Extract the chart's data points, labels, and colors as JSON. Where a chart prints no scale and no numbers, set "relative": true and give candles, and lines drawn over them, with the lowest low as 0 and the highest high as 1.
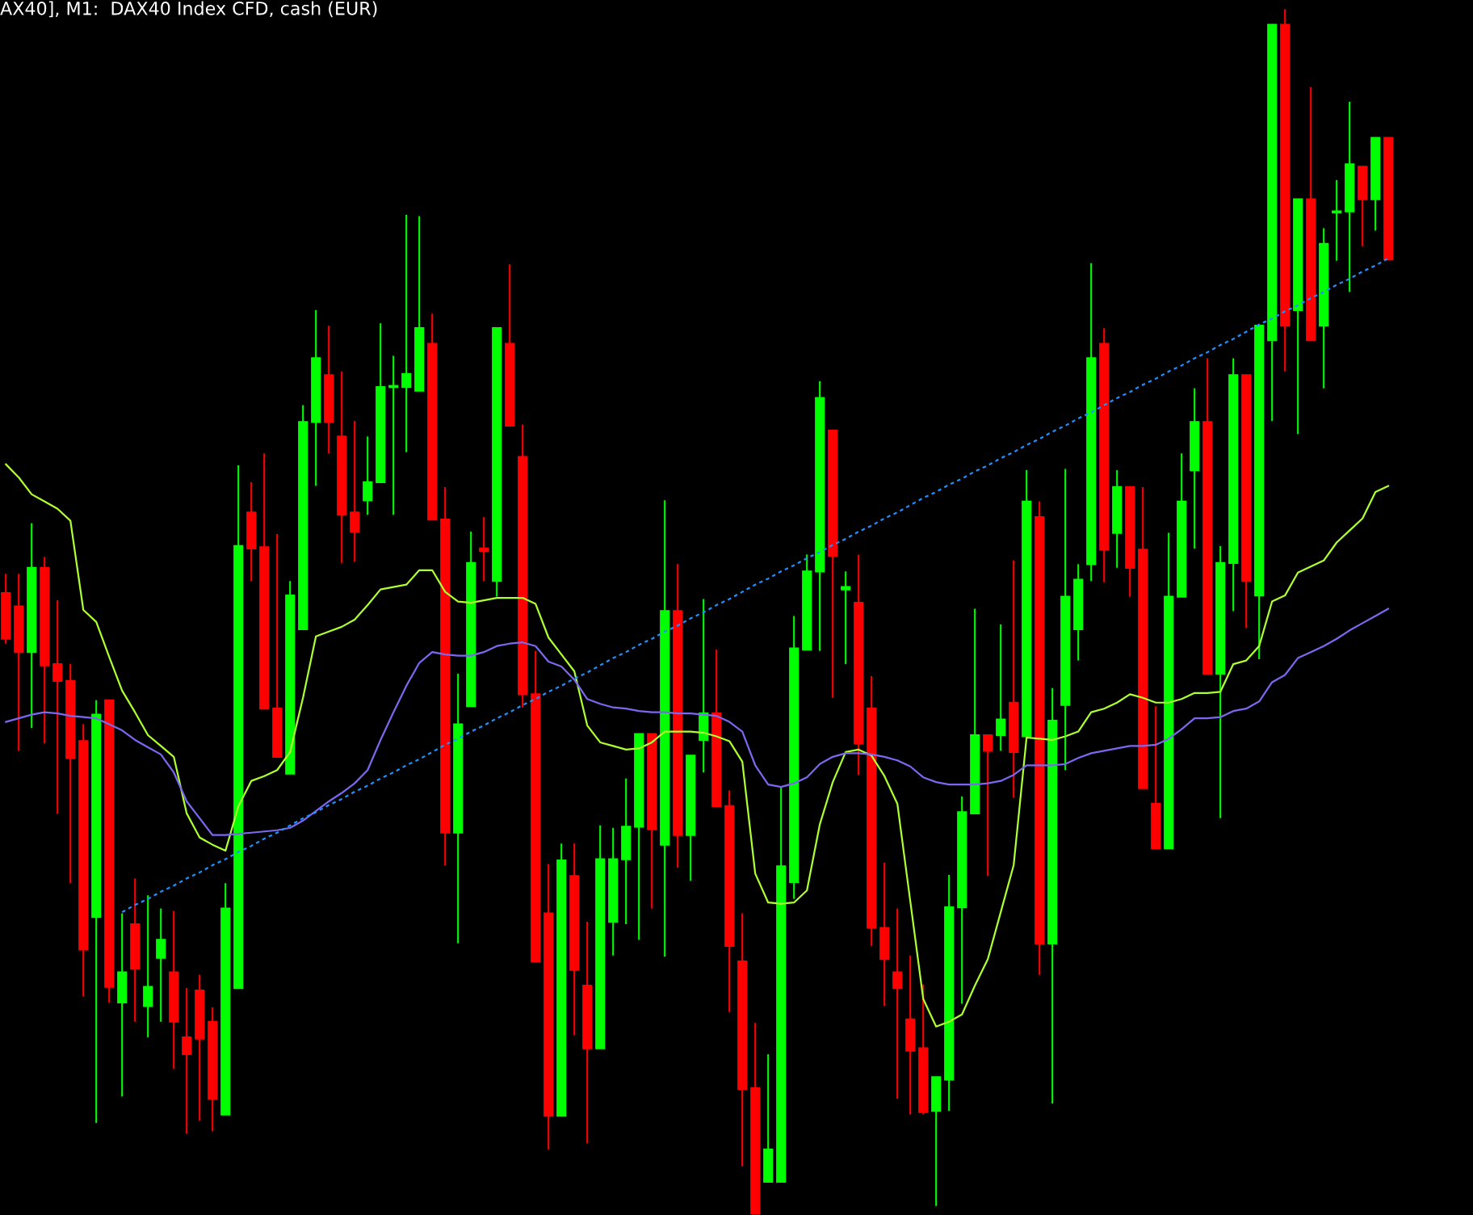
{
  "chart_data": {
    "type": "candlestick",
    "title": "AX40], M1:  DAX40 Index CFD, cash (EUR)",
    "relative": true,
    "categories": [
      null,
      null,
      null,
      null,
      null,
      null,
      null,
      null,
      null,
      null,
      null,
      null,
      null,
      null,
      null,
      null,
      null,
      null,
      null,
      null,
      null,
      null,
      null,
      null,
      null,
      null,
      null,
      null,
      null,
      null,
      null,
      null,
      null,
      null,
      null,
      null,
      null,
      null,
      null,
      null,
      null,
      null,
      null,
      null,
      null,
      null,
      null,
      null,
      null,
      null,
      null,
      null,
      null,
      null,
      null,
      null,
      null,
      null,
      null,
      null,
      null,
      null,
      null,
      null,
      null,
      null,
      null,
      null,
      null,
      null,
      null,
      null,
      null,
      null,
      null,
      null,
      null,
      null,
      null,
      null,
      null,
      null,
      null,
      null,
      null,
      null,
      null,
      null,
      null,
      null,
      null,
      null,
      null,
      null,
      null,
      null,
      null,
      null,
      null,
      null,
      null,
      null,
      null,
      null,
      null,
      null,
      null,
      null
    ],
    "ohlc": [
      [
        0.515,
        0.531,
        0.473,
        0.477
      ],
      [
        0.504,
        0.531,
        0.384,
        0.466
      ],
      [
        0.466,
        0.573,
        0.403,
        0.536
      ],
      [
        0.536,
        0.545,
        0.39,
        0.455
      ],
      [
        0.456,
        0.509,
        0.332,
        0.442
      ],
      [
        0.442,
        0.456,
        0.274,
        0.378
      ],
      [
        0.392,
        0.406,
        0.18,
        0.219
      ],
      [
        0.246,
        0.426,
        0.075,
        0.414
      ],
      [
        0.426,
        0.426,
        0.175,
        0.188
      ],
      [
        0.175,
        0.249,
        0.097,
        0.2
      ],
      [
        0.24,
        0.278,
        0.159,
        0.203
      ],
      [
        0.172,
        0.264,
        0.146,
        0.188
      ],
      [
        0.212,
        0.253,
        0.159,
        0.227
      ],
      [
        0.2,
        0.251,
        0.12,
        0.159
      ],
      [
        0.146,
        0.187,
        0.066,
        0.132
      ],
      [
        0.185,
        0.198,
        0.077,
        0.145
      ],
      [
        0.159,
        0.171,
        0.068,
        0.095
      ],
      [
        0.082,
        0.274,
        0.082,
        0.253
      ],
      [
        0.187,
        0.621,
        0.187,
        0.554
      ],
      [
        0.582,
        0.607,
        0.525,
        0.552
      ],
      [
        0.553,
        0.631,
        0.419,
        0.419
      ],
      [
        0.419,
        0.564,
        0.379,
        0.379
      ],
      [
        0.365,
        0.525,
        0.365,
        0.513
      ],
      [
        0.485,
        0.671,
        0.485,
        0.657
      ],
      [
        0.657,
        0.75,
        0.604,
        0.71
      ],
      [
        0.696,
        0.737,
        0.631,
        0.657
      ],
      [
        0.645,
        0.699,
        0.54,
        0.58
      ],
      [
        0.582,
        0.658,
        0.541,
        0.566
      ],
      [
        0.592,
        0.645,
        0.58,
        0.607
      ],
      [
        0.607,
        0.739,
        0.607,
        0.686
      ],
      [
        0.686,
        0.712,
        0.58,
        0.687
      ],
      [
        0.686,
        0.829,
        0.632,
        0.697
      ],
      [
        0.683,
        0.828,
        0.683,
        0.735
      ],
      [
        0.722,
        0.747,
        0.576,
        0.576
      ],
      [
        0.576,
        0.603,
        0.289,
        0.316
      ],
      [
        0.316,
        0.448,
        0.224,
        0.406
      ],
      [
        0.421,
        0.566,
        0.421,
        0.54
      ],
      [
        0.552,
        0.578,
        0.525,
        0.55
      ],
      [
        0.525,
        0.735,
        0.512,
        0.735
      ],
      [
        0.722,
        0.788,
        0.654,
        0.654
      ],
      [
        0.628,
        0.655,
        0.42,
        0.431
      ],
      [
        0.431,
        0.467,
        0.209,
        0.209
      ],
      [
        0.249,
        0.29,
        0.053,
        0.081
      ],
      [
        0.081,
        0.307,
        0.081,
        0.293
      ],
      [
        0.28,
        0.307,
        0.148,
        0.202
      ],
      [
        0.189,
        0.242,
        0.058,
        0.137
      ],
      [
        0.137,
        0.322,
        0.137,
        0.294
      ],
      [
        0.242,
        0.32,
        0.214,
        0.294
      ],
      [
        0.294,
        0.361,
        0.24,
        0.321
      ],
      [
        0.321,
        0.398,
        0.227,
        0.398
      ],
      [
        0.398,
        0.398,
        0.253,
        0.319
      ],
      [
        0.306,
        0.592,
        0.213,
        0.5
      ],
      [
        0.5,
        0.539,
        0.287,
        0.314
      ],
      [
        0.314,
        0.38,
        0.276,
        0.38
      ],
      [
        0.393,
        0.51,
        0.366,
        0.415
      ],
      [
        0.415,
        0.468,
        0.338,
        0.338
      ],
      [
        0.338,
        0.351,
        0.167,
        0.222
      ],
      [
        0.209,
        0.249,
        0.039,
        0.103
      ],
      [
        0.104,
        0.158,
        0,
        0
      ],
      [
        0.026,
        0.132,
        0.026,
        0.053
      ],
      [
        0.026,
        0.354,
        0.026,
        0.288
      ],
      [
        0.275,
        0.496,
        0.261,
        0.469
      ],
      [
        0.468,
        0.547,
        0.468,
        0.533
      ],
      [
        0.533,
        0.691,
        0.467,
        0.677
      ],
      [
        0.65,
        0.65,
        0.428,
        0.546
      ],
      [
        0.518,
        0.533,
        0.456,
        0.52
      ],
      [
        0.507,
        0.547,
        0.364,
        0.39
      ],
      [
        0.419,
        0.446,
        0.222,
        0.237
      ],
      [
        0.237,
        0.291,
        0.172,
        0.211
      ],
      [
        0.2,
        0.253,
        0.095,
        0.187
      ],
      [
        0.161,
        0.214,
        0.082,
        0.135
      ],
      [
        0.137,
        0.19,
        0.082,
        0.084
      ],
      [
        0.085,
        0.113,
        0.006,
        0.113
      ],
      [
        0.111,
        0.281,
        0.085,
        0.254
      ],
      [
        0.254,
        0.346,
        0.174,
        0.333
      ],
      [
        0.332,
        0.502,
        0.332,
        0.397
      ],
      [
        0.397,
        0.397,
        0.28,
        0.384
      ],
      [
        0.397,
        0.489,
        0.384,
        0.41
      ],
      [
        0.424,
        0.542,
        0.345,
        0.383
      ],
      [
        0.396,
        0.617,
        0.396,
        0.591
      ],
      [
        0.578,
        0.591,
        0.198,
        0.224
      ],
      [
        0.224,
        0.436,
        0.091,
        0.409
      ],
      [
        0.422,
        0.618,
        0.368,
        0.512
      ],
      [
        0.485,
        0.539,
        0.459,
        0.526
      ],
      [
        0.539,
        0.789,
        0.525,
        0.71
      ],
      [
        0.722,
        0.735,
        0.524,
        0.551
      ],
      [
        0.565,
        0.617,
        0.536,
        0.603
      ],
      [
        0.603,
        0.603,
        0.512,
        0.536
      ],
      [
        0.551,
        0.603,
        0.353,
        0.353
      ],
      [
        0.34,
        0.421,
        0.303,
        0.303
      ],
      [
        0.303,
        0.565,
        0.303,
        0.512
      ],
      [
        0.512,
        0.631,
        0.512,
        0.591
      ],
      [
        0.617,
        0.685,
        0.552,
        0.657
      ],
      [
        0.657,
        0.71,
        0.448,
        0.448
      ],
      [
        0.448,
        0.554,
        0.328,
        0.54
      ],
      [
        0.54,
        0.71,
        0.5,
        0.696
      ],
      [
        0.696,
        0.696,
        0.486,
        0.525
      ],
      [
        0.513,
        0.737,
        0.46,
        0.737
      ],
      [
        0.725,
        0.987,
        0.658,
        0.987
      ],
      [
        0.987,
        1,
        0.699,
        0.737
      ],
      [
        0.75,
        0.842,
        0.647,
        0.842
      ],
      [
        0.842,
        0.935,
        0.725,
        0.725
      ],
      [
        0.737,
        0.818,
        0.685,
        0.805
      ],
      [
        0.831,
        0.858,
        0.791,
        0.832
      ],
      [
        0.832,
        0.923,
        0.765,
        0.871
      ],
      [
        0.869,
        0.869,
        0.803,
        0.842
      ],
      [
        0.842,
        0.893,
        0.816,
        0.893
      ],
      [
        0.893,
        0.893,
        0.792,
        0.792
      ]
    ],
    "colors": [
      "#ff0000",
      "#ff0000",
      "#00ff00",
      "#ff0000",
      "#ff0000",
      "#ff0000",
      "#ff0000",
      "#00ff00",
      "#ff0000",
      "#00ff00",
      "#ff0000",
      "#00ff00",
      "#00ff00",
      "#ff0000",
      "#ff0000",
      "#ff0000",
      "#ff0000",
      "#00ff00",
      "#00ff00",
      "#ff0000",
      "#ff0000",
      "#ff0000",
      "#00ff00",
      "#00ff00",
      "#00ff00",
      "#ff0000",
      "#ff0000",
      "#ff0000",
      "#00ff00",
      "#00ff00",
      "#00ff00",
      "#00ff00",
      "#00ff00",
      "#ff0000",
      "#ff0000",
      "#00ff00",
      "#00ff00",
      "#ff0000",
      "#00ff00",
      "#ff0000",
      "#ff0000",
      "#ff0000",
      "#ff0000",
      "#00ff00",
      "#ff0000",
      "#ff0000",
      "#00ff00",
      "#00ff00",
      "#00ff00",
      "#00ff00",
      "#ff0000",
      "#00ff00",
      "#ff0000",
      "#00ff00",
      "#00ff00",
      "#ff0000",
      "#ff0000",
      "#ff0000",
      "#ff0000",
      "#00ff00",
      "#00ff00",
      "#00ff00",
      "#00ff00",
      "#00ff00",
      "#ff0000",
      "#00ff00",
      "#ff0000",
      "#ff0000",
      "#ff0000",
      "#ff0000",
      "#ff0000",
      "#ff0000",
      "#00ff00",
      "#00ff00",
      "#00ff00",
      "#00ff00",
      "#ff0000",
      "#00ff00",
      "#ff0000",
      "#00ff00",
      "#ff0000",
      "#00ff00",
      "#00ff00",
      "#00ff00",
      "#00ff00",
      "#ff0000",
      "#00ff00",
      "#ff0000",
      "#ff0000",
      "#ff0000",
      "#00ff00",
      "#00ff00",
      "#00ff00",
      "#ff0000",
      "#00ff00",
      "#00ff00",
      "#ff0000",
      "#00ff00",
      "#00ff00",
      "#ff0000",
      "#00ff00",
      "#ff0000",
      "#00ff00",
      "#00ff00",
      "#00ff00",
      "#ff0000",
      "#00ff00",
      "#ff0000"
    ],
    "series": [
      {
        "type": "line",
        "color": "#adff2f",
        "values": [
          0.622,
          0.611,
          0.597,
          0.591,
          0.585,
          0.575,
          0.501,
          0.491,
          0.462,
          0.434,
          0.416,
          0.397,
          0.388,
          0.379,
          0.332,
          0.312,
          0.306,
          0.301,
          0.338,
          0.359,
          0.363,
          0.368,
          0.383,
          0.428,
          0.479,
          0.483,
          0.487,
          0.493,
          0.505,
          0.518,
          0.52,
          0.522,
          0.534,
          0.534,
          0.516,
          0.508,
          0.507,
          0.509,
          0.511,
          0.511,
          0.511,
          0.506,
          0.478,
          0.464,
          0.45,
          0.405,
          0.391,
          0.388,
          0.385,
          0.386,
          0.391,
          0.4,
          0.4,
          0.4,
          0.399,
          0.396,
          0.392,
          0.375,
          0.282,
          0.258,
          0.257,
          0.258,
          0.268,
          0.323,
          0.358,
          0.383,
          0.385,
          0.38,
          0.363,
          0.34,
          0.259,
          0.178,
          0.155,
          0.159,
          0.165,
          0.189,
          0.211,
          0.25,
          0.289,
          0.395,
          0.394,
          0.393,
          0.396,
          0.4,
          0.416,
          0.419,
          0.424,
          0.431,
          0.428,
          0.424,
          0.424,
          0.427,
          0.432,
          0.432,
          0.433,
          0.456,
          0.459,
          0.471,
          0.508,
          0.513,
          0.532,
          0.537,
          0.542,
          0.557,
          0.567,
          0.577,
          0.599,
          0.604
        ]
      },
      {
        "type": "line",
        "color": "#7b68ee",
        "values": [
          0.408,
          0.411,
          0.414,
          0.416,
          0.415,
          0.413,
          0.412,
          0.411,
          0.406,
          0.401,
          0.393,
          0.387,
          0.381,
          0.366,
          0.342,
          0.328,
          0.314,
          0.314,
          0.315,
          0.316,
          0.317,
          0.318,
          0.32,
          0.326,
          0.334,
          0.342,
          0.349,
          0.357,
          0.368,
          0.393,
          0.416,
          0.438,
          0.457,
          0.466,
          0.464,
          0.463,
          0.463,
          0.466,
          0.471,
          0.473,
          0.474,
          0.471,
          0.458,
          0.454,
          0.443,
          0.427,
          0.423,
          0.42,
          0.419,
          0.417,
          0.416,
          0.416,
          0.415,
          0.415,
          0.414,
          0.413,
          0.408,
          0.4,
          0.372,
          0.356,
          0.354,
          0.357,
          0.362,
          0.373,
          0.379,
          0.382,
          0.382,
          0.381,
          0.379,
          0.376,
          0.371,
          0.362,
          0.358,
          0.356,
          0.356,
          0.356,
          0.357,
          0.359,
          0.364,
          0.372,
          0.372,
          0.372,
          0.373,
          0.378,
          0.382,
          0.384,
          0.386,
          0.388,
          0.388,
          0.389,
          0.394,
          0.402,
          0.411,
          0.411,
          0.412,
          0.417,
          0.419,
          0.425,
          0.441,
          0.447,
          0.461,
          0.466,
          0.471,
          0.477,
          0.484,
          0.49,
          0.496,
          0.502
        ]
      },
      {
        "type": "line",
        "color": "#1e90ff",
        "line_style": "dashed",
        "values": [
          null,
          null,
          null,
          null,
          null,
          null,
          null,
          null,
          null,
          0.25,
          0.256,
          0.261,
          0.267,
          0.272,
          0.278,
          0.283,
          0.289,
          0.294,
          0.3,
          0.305,
          0.311,
          0.316,
          0.322,
          0.328,
          0.333,
          0.339,
          0.344,
          0.35,
          0.355,
          0.361,
          0.366,
          0.372,
          0.377,
          0.383,
          0.389,
          0.394,
          0.4,
          0.405,
          0.411,
          0.416,
          0.422,
          0.427,
          0.433,
          0.438,
          0.444,
          0.449,
          0.455,
          0.461,
          0.466,
          0.472,
          0.477,
          0.483,
          0.488,
          0.494,
          0.499,
          0.505,
          0.51,
          0.516,
          0.522,
          0.527,
          0.533,
          0.538,
          0.544,
          0.549,
          0.555,
          0.56,
          0.566,
          0.571,
          0.577,
          0.582,
          0.588,
          0.594,
          0.599,
          0.605,
          0.61,
          0.616,
          0.621,
          0.627,
          0.632,
          0.638,
          0.643,
          0.649,
          0.654,
          0.66,
          0.665,
          0.671,
          0.677,
          0.682,
          0.688,
          0.693,
          0.699,
          0.704,
          0.71,
          0.715,
          0.721,
          0.726,
          0.732,
          0.738,
          0.743,
          0.749,
          0.754,
          0.76,
          0.765,
          0.771,
          0.776,
          0.782,
          0.787,
          0.793
        ]
      }
    ]
  }
}
